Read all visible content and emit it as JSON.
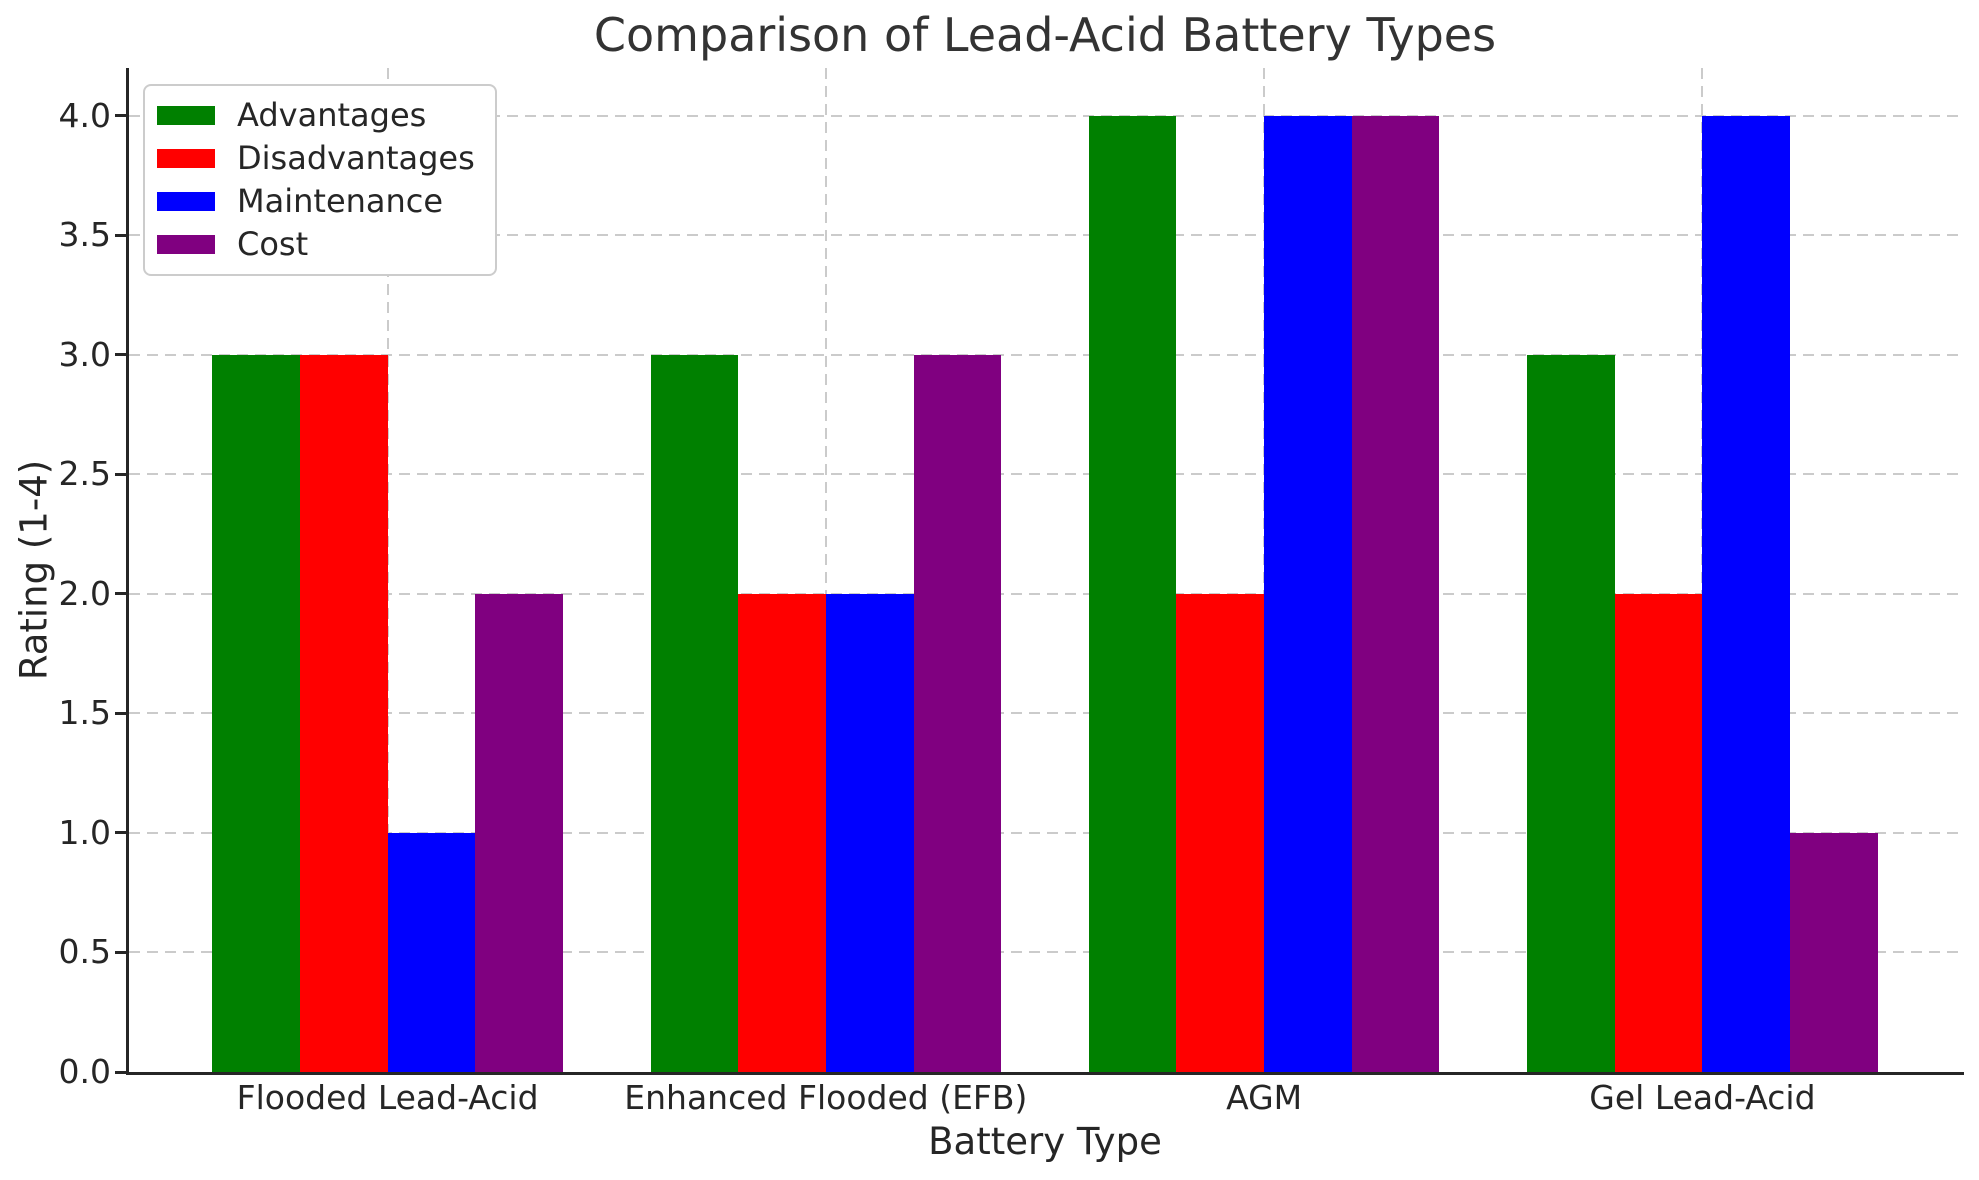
{
  "chart_data": {
    "type": "bar",
    "title": "Comparison of Lead-Acid Battery Types",
    "xlabel": "Battery Type",
    "ylabel": "Rating (1-4)",
    "categories": [
      "Flooded Lead-Acid",
      "Enhanced Flooded (EFB)",
      "AGM",
      "Gel Lead-Acid"
    ],
    "series": [
      {
        "name": "Advantages",
        "color": "#008000",
        "values": [
          3,
          3,
          4,
          3
        ]
      },
      {
        "name": "Disadvantages",
        "color": "#ff0000",
        "values": [
          3,
          2,
          2,
          2
        ]
      },
      {
        "name": "Maintenance",
        "color": "#0000ff",
        "values": [
          1,
          2,
          4,
          4
        ]
      },
      {
        "name": "Cost",
        "color": "#800080",
        "values": [
          2,
          3,
          4,
          1
        ]
      }
    ],
    "yticks": [
      0,
      0.5,
      1,
      1.5,
      2,
      2.5,
      3,
      3.5,
      4
    ],
    "ytick_labels": [
      "0.0",
      "0.5",
      "1.0",
      "1.5",
      "2.0",
      "2.5",
      "3.0",
      "3.5",
      "4.0"
    ],
    "ylim": [
      0,
      4.2
    ],
    "xlim": [
      -0.59,
      3.59
    ],
    "bar_width": 0.2,
    "grid": true,
    "grid_style": "dashed",
    "legend_position": "upper left",
    "legend_items": [
      "Advantages",
      "Disadvantages",
      "Maintenance",
      "Cost"
    ]
  },
  "style": {
    "background": "#ffffff",
    "grid_color": "#cbcbcb",
    "spine_color": "#262626",
    "text_color": "#262626",
    "legend_border_color": "#cccccc"
  }
}
